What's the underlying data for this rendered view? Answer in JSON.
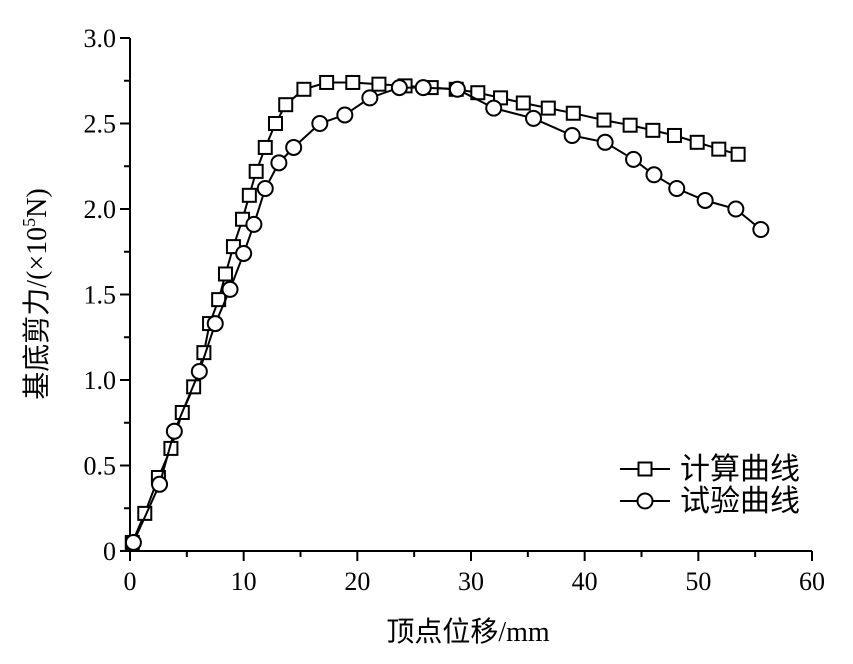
{
  "chart_data": {
    "type": "line",
    "xlabel": "顶点位移/mm",
    "ylabel_main": "基底剪力/(×10",
    "ylabel_sup": "5",
    "ylabel_end": "N)",
    "xlim": [
      0,
      60
    ],
    "ylim": [
      0,
      3.0
    ],
    "xticks": [
      0,
      10,
      20,
      30,
      40,
      50,
      60
    ],
    "xtick_labels": [
      "0",
      "10",
      "20",
      "30",
      "40",
      "50",
      "60"
    ],
    "yticks": [
      0,
      0.5,
      1.0,
      1.5,
      2.0,
      2.5,
      3.0
    ],
    "ytick_labels": [
      "0",
      "0.5",
      "1.0",
      "1.5",
      "2.0",
      "2.5",
      "3.0"
    ],
    "grid": false,
    "legend_position": "bottom-right",
    "series": [
      {
        "name": "计算曲线",
        "marker": "square",
        "x": [
          0.2,
          1.3,
          2.5,
          3.6,
          4.6,
          5.6,
          6.5,
          7.0,
          7.8,
          8.4,
          9.1,
          9.9,
          10.5,
          11.1,
          11.9,
          12.8,
          13.7,
          15.3,
          17.3,
          19.6,
          21.9,
          24.2,
          26.5,
          28.7,
          30.6,
          32.6,
          34.6,
          36.8,
          39.0,
          41.7,
          44.0,
          46.0,
          47.9,
          49.9,
          51.8,
          53.5
        ],
        "y": [
          0.05,
          0.22,
          0.43,
          0.6,
          0.81,
          0.96,
          1.16,
          1.33,
          1.47,
          1.62,
          1.78,
          1.94,
          2.08,
          2.22,
          2.36,
          2.5,
          2.61,
          2.7,
          2.74,
          2.74,
          2.73,
          2.72,
          2.71,
          2.7,
          2.68,
          2.65,
          2.62,
          2.59,
          2.56,
          2.52,
          2.49,
          2.46,
          2.43,
          2.39,
          2.35,
          2.32
        ]
      },
      {
        "name": "试验曲线",
        "marker": "circle",
        "x": [
          0.3,
          2.6,
          3.9,
          6.1,
          7.5,
          8.8,
          10.0,
          10.9,
          11.9,
          13.1,
          14.4,
          16.7,
          18.9,
          21.1,
          23.7,
          25.8,
          28.8,
          32.0,
          35.5,
          38.9,
          41.8,
          44.3,
          46.1,
          48.1,
          50.6,
          53.3,
          55.5
        ],
        "y": [
          0.05,
          0.39,
          0.7,
          1.05,
          1.33,
          1.53,
          1.74,
          1.91,
          2.12,
          2.27,
          2.36,
          2.5,
          2.55,
          2.65,
          2.71,
          2.71,
          2.7,
          2.59,
          2.53,
          2.43,
          2.39,
          2.29,
          2.2,
          2.12,
          2.05,
          2.0,
          1.88
        ]
      }
    ]
  }
}
